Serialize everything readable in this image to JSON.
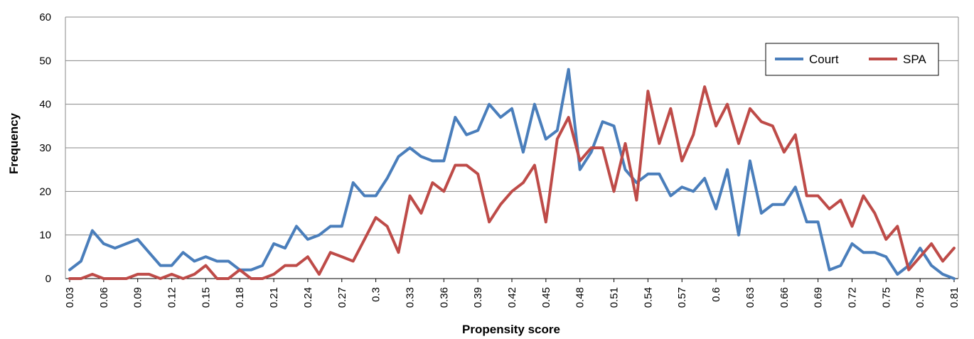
{
  "chart_data": {
    "type": "line",
    "xlabel": "Propensity score",
    "ylabel": "Frequency",
    "ylim": [
      0,
      60
    ],
    "yticks": [
      0,
      10,
      20,
      30,
      40,
      50,
      60
    ],
    "grid": "horizontal",
    "legend_position": "top-right",
    "x": [
      "0.03",
      "0.04",
      "0.05",
      "0.06",
      "0.07",
      "0.08",
      "0.09",
      "0.1",
      "0.11",
      "0.12",
      "0.13",
      "0.14",
      "0.15",
      "0.16",
      "0.17",
      "0.18",
      "0.19",
      "0.2",
      "0.21",
      "0.22",
      "0.23",
      "0.24",
      "0.25",
      "0.26",
      "0.27",
      "0.28",
      "0.29",
      "0.3",
      "0.31",
      "0.32",
      "0.33",
      "0.34",
      "0.35",
      "0.36",
      "0.37",
      "0.38",
      "0.39",
      "0.4",
      "0.41",
      "0.42",
      "0.43",
      "0.44",
      "0.45",
      "0.46",
      "0.47",
      "0.48",
      "0.49",
      "0.5",
      "0.51",
      "0.52",
      "0.53",
      "0.54",
      "0.55",
      "0.56",
      "0.57",
      "0.58",
      "0.59",
      "0.6",
      "0.61",
      "0.62",
      "0.63",
      "0.64",
      "0.65",
      "0.66",
      "0.67",
      "0.68",
      "0.69",
      "0.7",
      "0.71",
      "0.72",
      "0.73",
      "0.74",
      "0.75",
      "0.76",
      "0.77",
      "0.78",
      "0.79",
      "0.8",
      "0.81"
    ],
    "x_tick_labels": [
      "0.03",
      "0.06",
      "0.09",
      "0.12",
      "0.15",
      "0.18",
      "0.21",
      "0.24",
      "0.27",
      "0.3",
      "0.33",
      "0.36",
      "0.39",
      "0.42",
      "0.45",
      "0.48",
      "0.51",
      "0.54",
      "0.57",
      "0.6",
      "0.63",
      "0.66",
      "0.69",
      "0.72",
      "0.75",
      "0.78",
      "0.81"
    ],
    "series": [
      {
        "name": "Court",
        "color": "#4a7ebb",
        "values": [
          2,
          4,
          11,
          8,
          7,
          8,
          9,
          6,
          3,
          3,
          6,
          4,
          5,
          4,
          4,
          2,
          2,
          3,
          8,
          7,
          12,
          9,
          10,
          12,
          12,
          22,
          19,
          19,
          23,
          28,
          30,
          28,
          27,
          27,
          37,
          33,
          34,
          40,
          37,
          39,
          29,
          40,
          32,
          34,
          48,
          25,
          29,
          36,
          35,
          25,
          22,
          24,
          24,
          19,
          21,
          20,
          23,
          16,
          25,
          10,
          27,
          15,
          17,
          17,
          21,
          13,
          13,
          2,
          3,
          8,
          6,
          6,
          5,
          1,
          3,
          7,
          3,
          1,
          0
        ]
      },
      {
        "name": "SPA",
        "color": "#be4b48",
        "values": [
          0,
          0,
          1,
          0,
          0,
          0,
          1,
          1,
          0,
          1,
          0,
          1,
          3,
          0,
          0,
          2,
          0,
          0,
          1,
          3,
          3,
          5,
          1,
          6,
          5,
          4,
          9,
          14,
          12,
          6,
          19,
          15,
          22,
          20,
          26,
          26,
          24,
          13,
          17,
          20,
          22,
          26,
          13,
          32,
          37,
          27,
          30,
          30,
          20,
          31,
          18,
          43,
          31,
          39,
          27,
          33,
          44,
          35,
          40,
          31,
          39,
          36,
          35,
          29,
          33,
          19,
          19,
          16,
          18,
          12,
          19,
          15,
          9,
          12,
          2,
          5,
          8,
          4,
          7
        ]
      }
    ]
  }
}
